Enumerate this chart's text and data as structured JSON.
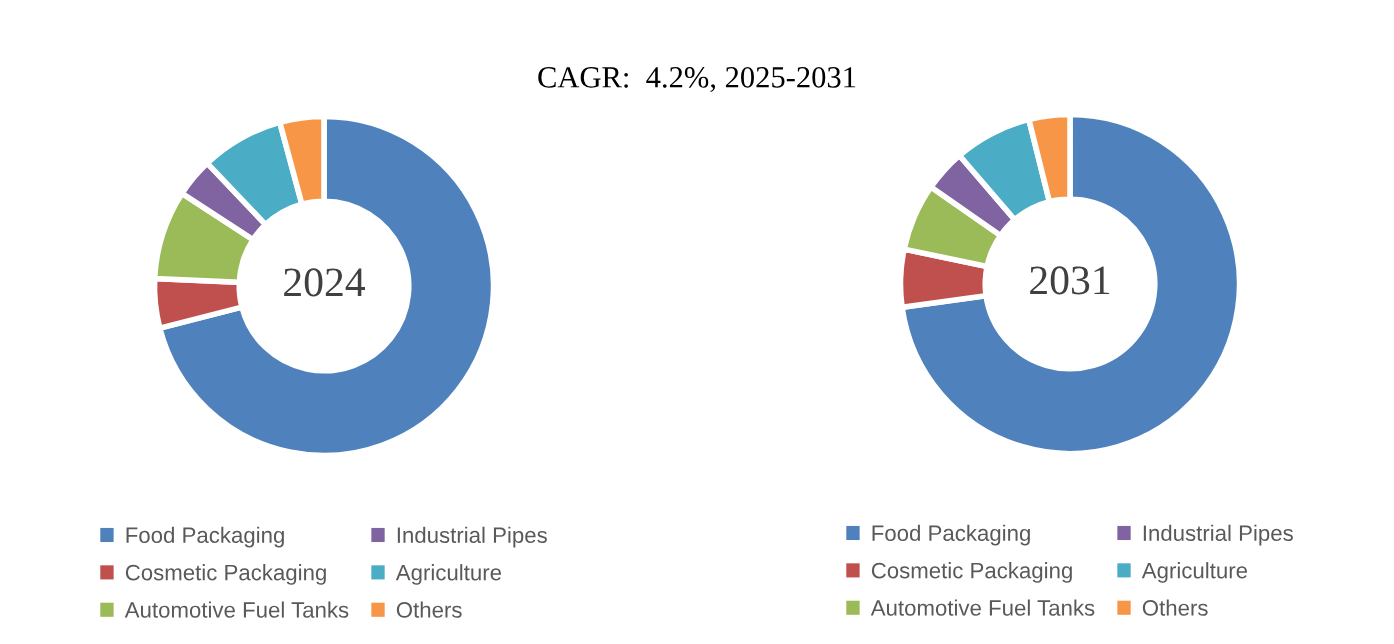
{
  "chart_data": [
    {
      "type": "donut",
      "title": "CAGR:  4.2%, 2025-2031",
      "annotations": [
        "2024"
      ],
      "legend": "bottom",
      "categories": [
        "Food Packaging",
        "Cosmetic Packaging",
        "Automotive Fuel Tanks",
        "Industrial Pipes",
        "Agriculture",
        "Others"
      ],
      "values": [
        71,
        4.7,
        8.5,
        3.7,
        7.9,
        4.2
      ],
      "colors": [
        "#4f81bd",
        "#c0504d",
        "#9bbb59",
        "#8064a2",
        "#4bacc6",
        "#f79646"
      ]
    },
    {
      "type": "donut",
      "annotations": [
        "2031"
      ],
      "legend": "bottom",
      "categories": [
        "Food Packaging",
        "Cosmetic Packaging",
        "Automotive Fuel Tanks",
        "Industrial Pipes",
        "Agriculture",
        "Others"
      ],
      "values": [
        72.8,
        5.5,
        6.4,
        4.0,
        7.4,
        3.9
      ],
      "colors": [
        "#4f81bd",
        "#c0504d",
        "#9bbb59",
        "#8064a2",
        "#4bacc6",
        "#f79646"
      ]
    }
  ]
}
